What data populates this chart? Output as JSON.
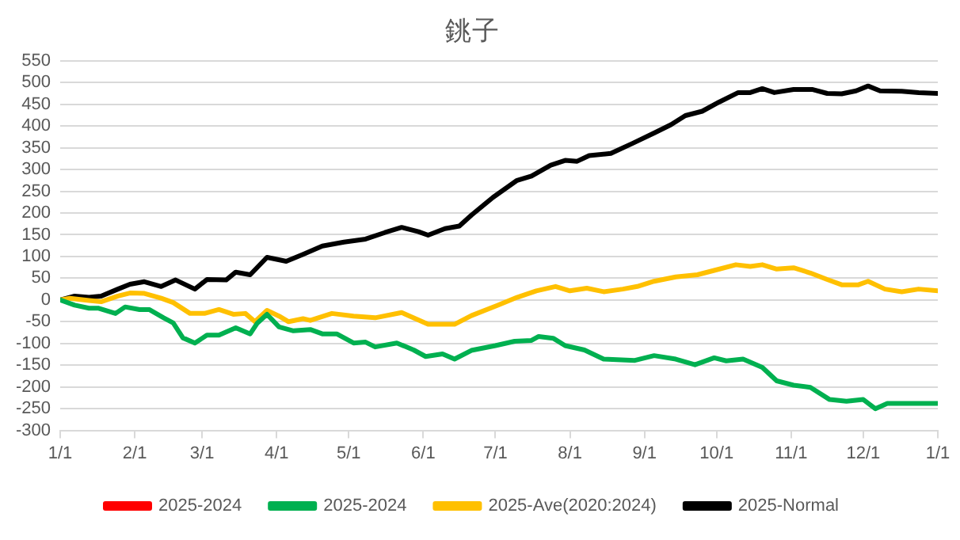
{
  "chart_data": {
    "type": "line",
    "title": "銚子",
    "xlim": [
      "2025-01-01",
      "2026-01-01"
    ],
    "xticks": [
      {
        "value": "2025-01-01",
        "label": "1/1"
      },
      {
        "value": "2025-02-01",
        "label": "2/1"
      },
      {
        "value": "2025-03-01",
        "label": "3/1"
      },
      {
        "value": "2025-04-01",
        "label": "4/1"
      },
      {
        "value": "2025-05-01",
        "label": "5/1"
      },
      {
        "value": "2025-06-01",
        "label": "6/1"
      },
      {
        "value": "2025-07-01",
        "label": "7/1"
      },
      {
        "value": "2025-08-01",
        "label": "8/1"
      },
      {
        "value": "2025-09-01",
        "label": "9/1"
      },
      {
        "value": "2025-10-01",
        "label": "10/1"
      },
      {
        "value": "2025-11-01",
        "label": "11/1"
      },
      {
        "value": "2025-12-01",
        "label": "12/1"
      },
      {
        "value": "2026-01-01",
        "label": "1/1"
      }
    ],
    "ylim": [
      -300,
      550
    ],
    "yticks": [
      -300,
      -250,
      -200,
      -150,
      -100,
      -50,
      0,
      50,
      100,
      150,
      200,
      250,
      300,
      350,
      400,
      450,
      500,
      550
    ],
    "grid": "y",
    "legend": "bottom",
    "marker": "none",
    "line_style": "solid",
    "series": [
      {
        "name": "2025-2024",
        "color": "#ff0000"
      },
      {
        "name": "2025-2024",
        "color": "#00b050",
        "x": [
          "2025-01-01",
          "2025-01-07",
          "2025-01-13",
          "2025-01-17",
          "2025-01-24",
          "2025-01-28",
          "2025-02-03",
          "2025-02-07",
          "2025-02-13",
          "2025-02-17",
          "2025-02-21",
          "2025-02-26",
          "2025-03-03",
          "2025-03-08",
          "2025-03-15",
          "2025-03-21",
          "2025-03-24",
          "2025-03-28",
          "2025-04-02",
          "2025-04-08",
          "2025-04-15",
          "2025-04-20",
          "2025-04-26",
          "2025-05-03",
          "2025-05-08",
          "2025-05-12",
          "2025-05-21",
          "2025-05-28",
          "2025-06-02",
          "2025-06-09",
          "2025-06-14",
          "2025-06-21",
          "2025-07-01",
          "2025-07-09",
          "2025-07-16",
          "2025-07-19",
          "2025-07-25",
          "2025-07-30",
          "2025-08-07",
          "2025-08-15",
          "2025-08-28",
          "2025-09-05",
          "2025-09-14",
          "2025-09-22",
          "2025-09-30",
          "2025-10-05",
          "2025-10-12",
          "2025-10-20",
          "2025-10-26",
          "2025-11-02",
          "2025-11-09",
          "2025-11-17",
          "2025-11-24",
          "2025-12-01",
          "2025-12-06",
          "2025-12-11",
          "2026-01-01"
        ],
        "values": [
          0,
          -12,
          -19,
          -19,
          -31,
          -16,
          -22,
          -22,
          -41,
          -53,
          -87,
          -99,
          -81,
          -81,
          -64,
          -78,
          -53,
          -33,
          -62,
          -71,
          -68,
          -78,
          -78,
          -99,
          -97,
          -108,
          -99,
          -115,
          -130,
          -124,
          -136,
          -116,
          -105,
          -95,
          -93,
          -84,
          -88,
          -105,
          -115,
          -136,
          -139,
          -128,
          -136,
          -149,
          -133,
          -140,
          -136,
          -155,
          -186,
          -196,
          -201,
          -229,
          -233,
          -229,
          -250,
          -238,
          -238
        ]
      },
      {
        "name": "2025-Ave(2020:2024)",
        "color": "#ffc000",
        "x": [
          "2025-01-01",
          "2025-01-05",
          "2025-01-13",
          "2025-01-18",
          "2025-01-25",
          "2025-01-30",
          "2025-02-05",
          "2025-02-12",
          "2025-02-17",
          "2025-02-24",
          "2025-03-02",
          "2025-03-08",
          "2025-03-14",
          "2025-03-19",
          "2025-03-23",
          "2025-03-28",
          "2025-04-02",
          "2025-04-06",
          "2025-04-12",
          "2025-04-15",
          "2025-04-24",
          "2025-05-03",
          "2025-05-12",
          "2025-05-23",
          "2025-06-03",
          "2025-06-14",
          "2025-06-21",
          "2025-07-02",
          "2025-07-10",
          "2025-07-18",
          "2025-07-26",
          "2025-08-01",
          "2025-08-08",
          "2025-08-15",
          "2025-08-23",
          "2025-08-29",
          "2025-09-05",
          "2025-09-14",
          "2025-09-23",
          "2025-09-30",
          "2025-10-09",
          "2025-10-15",
          "2025-10-20",
          "2025-10-26",
          "2025-11-02",
          "2025-11-09",
          "2025-11-16",
          "2025-11-22",
          "2025-11-29",
          "2025-12-03",
          "2025-12-10",
          "2025-12-17",
          "2025-12-24",
          "2026-01-01"
        ],
        "values": [
          0,
          4,
          -1,
          -4,
          9,
          16,
          15,
          4,
          -6,
          -31,
          -31,
          -22,
          -33,
          -31,
          -50,
          -24,
          -37,
          -50,
          -43,
          -47,
          -31,
          -37,
          -41,
          -29,
          -56,
          -56,
          -36,
          -12,
          6,
          21,
          31,
          21,
          27,
          19,
          25,
          31,
          43,
          53,
          58,
          68,
          81,
          77,
          81,
          71,
          74,
          62,
          47,
          35,
          35,
          43,
          25,
          19,
          25,
          21
        ]
      },
      {
        "name": "2025-Normal",
        "color": "#000000",
        "x": [
          "2025-01-01",
          "2025-01-07",
          "2025-01-13",
          "2025-01-18",
          "2025-01-25",
          "2025-01-30",
          "2025-02-05",
          "2025-02-12",
          "2025-02-18",
          "2025-02-26",
          "2025-03-03",
          "2025-03-11",
          "2025-03-15",
          "2025-03-21",
          "2025-03-28",
          "2025-04-05",
          "2025-04-12",
          "2025-04-20",
          "2025-04-29",
          "2025-05-08",
          "2025-05-16",
          "2025-05-23",
          "2025-05-30",
          "2025-06-03",
          "2025-06-10",
          "2025-06-16",
          "2025-06-21",
          "2025-06-30",
          "2025-07-10",
          "2025-07-16",
          "2025-07-24",
          "2025-07-30",
          "2025-08-04",
          "2025-08-09",
          "2025-08-18",
          "2025-08-27",
          "2025-09-05",
          "2025-09-12",
          "2025-09-18",
          "2025-09-25",
          "2025-10-02",
          "2025-10-10",
          "2025-10-15",
          "2025-10-20",
          "2025-10-25",
          "2025-11-02",
          "2025-11-10",
          "2025-11-16",
          "2025-11-22",
          "2025-11-28",
          "2025-12-03",
          "2025-12-08",
          "2025-12-17",
          "2025-12-24",
          "2026-01-01"
        ],
        "values": [
          0,
          9,
          6,
          9,
          25,
          36,
          42,
          31,
          46,
          25,
          47,
          46,
          64,
          58,
          98,
          89,
          105,
          124,
          133,
          140,
          155,
          167,
          157,
          149,
          164,
          170,
          195,
          236,
          275,
          285,
          310,
          321,
          319,
          332,
          337,
          360,
          384,
          403,
          424,
          434,
          455,
          477,
          477,
          486,
          477,
          484,
          484,
          475,
          474,
          481,
          492,
          481,
          480,
          477,
          475
        ]
      }
    ]
  }
}
